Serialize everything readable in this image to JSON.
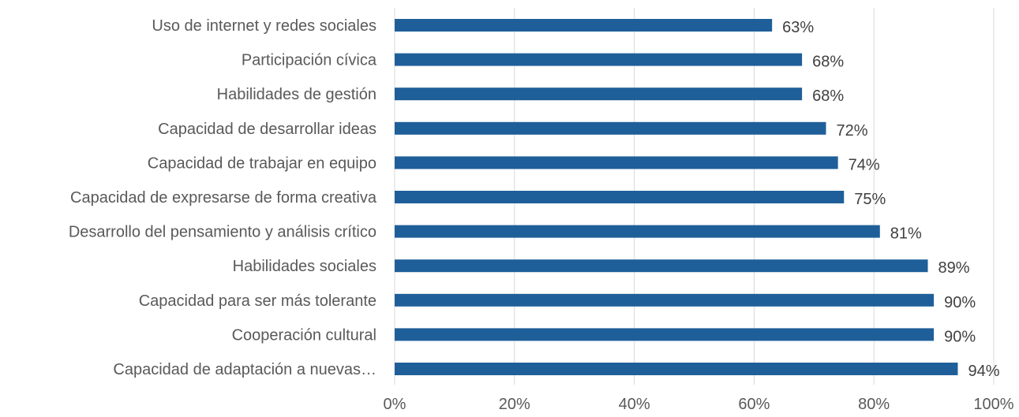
{
  "chart_data": {
    "type": "bar",
    "orientation": "horizontal",
    "title": "",
    "xlabel": "",
    "ylabel": "",
    "categories": [
      "Uso de internet y redes sociales",
      "Participación cívica",
      "Habilidades de gestión",
      "Capacidad de desarrollar ideas",
      "Capacidad de trabajar en equipo",
      "Capacidad de expresarse de forma creativa",
      "Desarrollo del pensamiento y análisis crítico",
      "Habilidades sociales",
      "Capacidad para ser más tolerante",
      "Cooperación cultural",
      "Capacidad de adaptación a nuevas…"
    ],
    "values": [
      63,
      68,
      68,
      72,
      74,
      75,
      81,
      89,
      90,
      90,
      94
    ],
    "value_labels": [
      "63%",
      "68%",
      "68%",
      "72%",
      "74%",
      "75%",
      "81%",
      "89%",
      "90%",
      "90%",
      "94%"
    ],
    "xlim": [
      0,
      100
    ],
    "ticks": [
      0,
      20,
      40,
      60,
      80,
      100
    ],
    "tick_labels": [
      "0%",
      "20%",
      "40%",
      "60%",
      "80%",
      "100%"
    ],
    "grid": true,
    "legend": "none",
    "bar_color": "#1f5f99"
  }
}
